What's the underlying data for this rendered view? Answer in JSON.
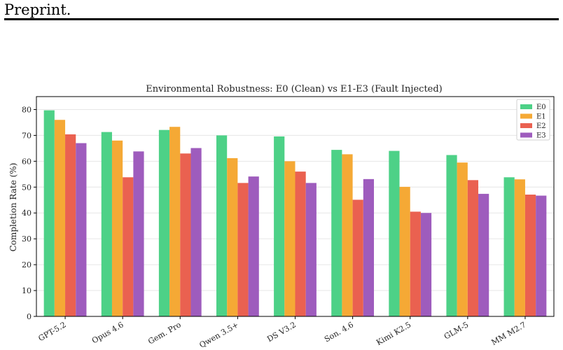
{
  "header": {
    "text": "Preprint."
  },
  "chart_data": {
    "type": "bar",
    "title": "Environmental Robustness: E0 (Clean) vs E1-E3 (Fault Injected)",
    "xlabel": "",
    "ylabel": "Completion Rate (%)",
    "ylim": [
      0,
      85
    ],
    "yticks": [
      0,
      10,
      20,
      30,
      40,
      50,
      60,
      70,
      80
    ],
    "grid": "horizontal",
    "legend_position": "top-right",
    "categories": [
      "GPT-5.2",
      "Opus 4.6",
      "Gem. Pro",
      "Qwen 3.5+",
      "DS V3.2",
      "Son. 4.6",
      "Kimi K2.5",
      "GLM-5",
      "MM M2.7"
    ],
    "series": [
      {
        "name": "E0",
        "color": "#4dd187",
        "values": [
          79.7,
          71.3,
          72.1,
          70.0,
          69.6,
          64.4,
          64.0,
          62.4,
          53.8
        ]
      },
      {
        "name": "E1",
        "color": "#f5a935",
        "values": [
          76.0,
          68.0,
          73.3,
          61.2,
          60.0,
          62.7,
          50.1,
          59.5,
          53.0
        ]
      },
      {
        "name": "E2",
        "color": "#ea6150",
        "values": [
          70.4,
          53.8,
          63.0,
          51.6,
          56.0,
          45.1,
          40.5,
          52.7,
          47.1
        ]
      },
      {
        "name": "E3",
        "color": "#9e5cbd",
        "values": [
          67.0,
          63.8,
          65.1,
          54.1,
          51.6,
          53.1,
          40.0,
          47.4,
          46.7
        ]
      }
    ]
  }
}
